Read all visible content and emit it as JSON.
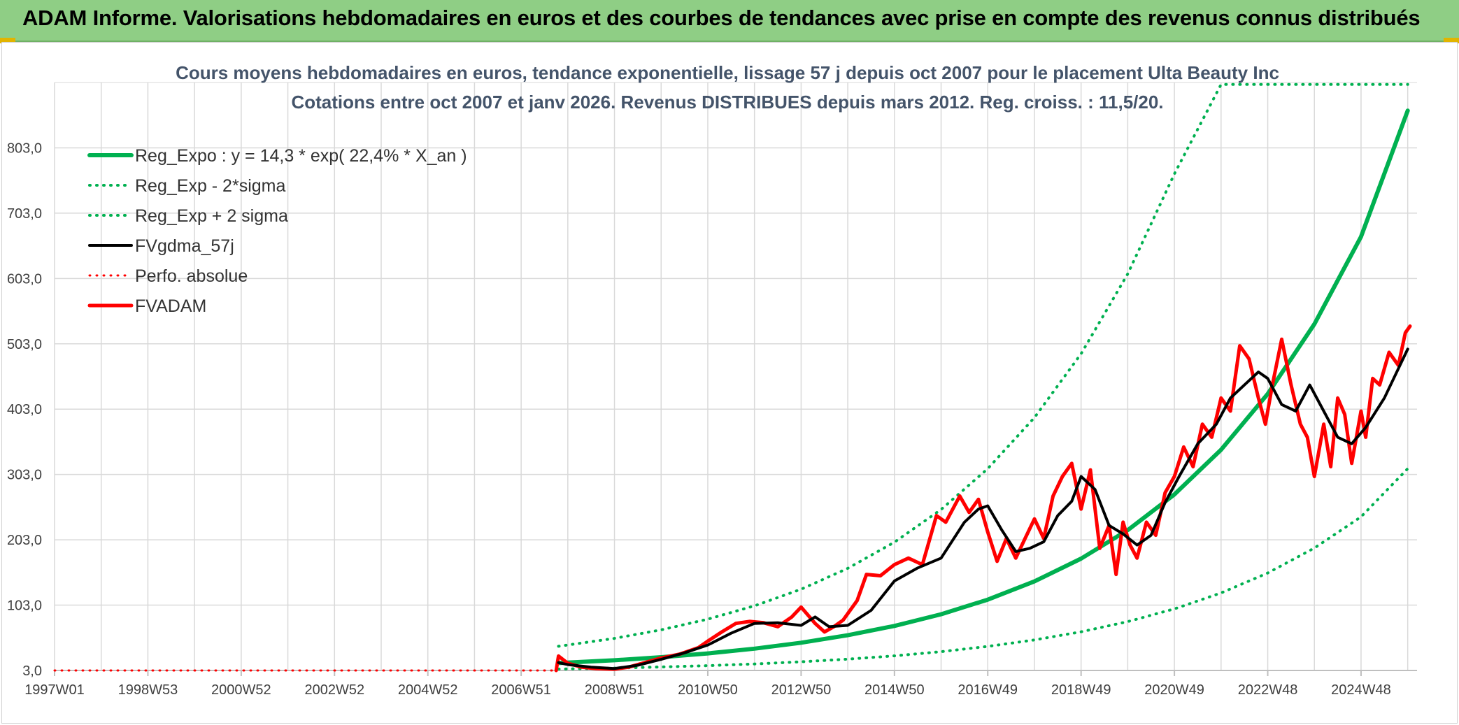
{
  "header": {
    "title": "ADAM Informe. Valorisations hebdomadaires en euros et des courbes de tendances avec prise en compte des revenus connus distribués"
  },
  "colors": {
    "banner": "#8fce85",
    "green": "#00b050",
    "black": "#000000",
    "red": "#ff0000",
    "grid": "#d9d9d9",
    "title": "#44546a"
  },
  "chart_data": {
    "type": "line",
    "title_line1": "Cours moyens hebdomadaires en euros, tendance exponentielle, lissage 57 j depuis oct 2007 pour le placement Ulta Beauty Inc",
    "title_line2": "Cotations entre oct 2007 et janv 2026. Revenus DISTRIBUES depuis mars 2012. Reg. croiss. : 11,5/20.",
    "xlabel": "",
    "ylabel": "",
    "ylim": [
      3,
      903
    ],
    "xlim": [
      1997.0,
      2026.2
    ],
    "grid": true,
    "legend_position": "top-left",
    "y_ticks": [
      "3,0",
      "103,0",
      "203,0",
      "303,0",
      "403,0",
      "503,0",
      "603,0",
      "703,0",
      "803,0"
    ],
    "y_tick_values": [
      3,
      103,
      203,
      303,
      403,
      503,
      603,
      703,
      803
    ],
    "x_ticks": [
      "1997W01",
      "1998W53",
      "2000W52",
      "2002W52",
      "2004W52",
      "2006W51",
      "2008W51",
      "2010W50",
      "2012W50",
      "2014W50",
      "2016W49",
      "2018W49",
      "2020W49",
      "2022W48",
      "2024W48"
    ],
    "x_tick_values": [
      1997.0,
      1999.0,
      2001.0,
      2003.0,
      2005.0,
      2007.0,
      2009.0,
      2011.0,
      2013.0,
      2015.0,
      2017.0,
      2019.0,
      2021.0,
      2023.0,
      2025.0
    ],
    "legend": [
      {
        "label": "Reg_Expo : y = 14,3 * exp( 22,4% *  X_an )",
        "color": "#00b050",
        "style": "solid",
        "width": 6
      },
      {
        "label": "Reg_Exp - 2*sigma",
        "color": "#00b050",
        "style": "dotted",
        "width": 4
      },
      {
        "label": "Reg_Exp + 2 sigma",
        "color": "#00b050",
        "style": "dotted",
        "width": 4
      },
      {
        "label": "FVgdma_57j",
        "color": "#000000",
        "style": "solid",
        "width": 4
      },
      {
        "label": "Perfo. absolue",
        "color": "#ff0000",
        "style": "dotted",
        "width": 3
      },
      {
        "label": "FVADAM",
        "color": "#ff0000",
        "style": "solid",
        "width": 5
      }
    ],
    "series": [
      {
        "name": "Reg_Expo : y = 14,3 * exp( 22,4% *  X_an )",
        "x": [
          2007.8,
          2009.0,
          2010.0,
          2011.0,
          2012.0,
          2013.0,
          2014.0,
          2015.0,
          2016.0,
          2017.0,
          2018.0,
          2019.0,
          2020.0,
          2021.0,
          2022.0,
          2023.0,
          2024.0,
          2025.0,
          2026.0
        ],
        "values": [
          14.3,
          18.6,
          23.3,
          29.1,
          36.4,
          45.5,
          56.9,
          71.2,
          89.0,
          111.4,
          139.3,
          174.2,
          217.9,
          272.5,
          340.9,
          426.3,
          533.2,
          666.9,
          860.0
        ]
      },
      {
        "name": "Reg_Exp - 2*sigma",
        "x": [
          2007.8,
          2009.0,
          2010.0,
          2011.0,
          2012.0,
          2013.0,
          2014.0,
          2015.0,
          2016.0,
          2017.0,
          2018.0,
          2019.0,
          2020.0,
          2021.0,
          2022.0,
          2023.0,
          2024.0,
          2025.0,
          2026.0
        ],
        "values": [
          5.1,
          6.6,
          8.3,
          10.4,
          13.0,
          16.3,
          20.3,
          25.4,
          31.8,
          39.8,
          49.8,
          62.2,
          77.8,
          97.3,
          121.7,
          152.2,
          190.4,
          238.1,
          312.0
        ]
      },
      {
        "name": "Reg_Exp + 2 sigma",
        "x": [
          2007.8,
          2009.0,
          2010.0,
          2011.0,
          2012.0,
          2013.0,
          2014.0,
          2015.0,
          2016.0,
          2017.0,
          2018.0,
          2019.0,
          2020.0,
          2021.0,
          2022.0,
          2023.0,
          2024.0,
          2025.0,
          2026.0
        ],
        "values": [
          40.0,
          52.1,
          65.2,
          81.5,
          101.9,
          127.4,
          159.4,
          199.4,
          249.3,
          311.9,
          390.1,
          487.8,
          610.1,
          763.1,
          900.0,
          900.0,
          900.0,
          900.0,
          900.0
        ]
      },
      {
        "name": "FVgdma_57j",
        "x": [
          2007.8,
          2008.0,
          2008.5,
          2009.0,
          2009.5,
          2010.0,
          2010.5,
          2011.0,
          2011.5,
          2012.0,
          2012.5,
          2013.0,
          2013.3,
          2013.6,
          2014.0,
          2014.5,
          2015.0,
          2015.5,
          2016.0,
          2016.5,
          2016.8,
          2017.0,
          2017.3,
          2017.6,
          2017.9,
          2018.2,
          2018.5,
          2018.8,
          2019.0,
          2019.3,
          2019.6,
          2019.9,
          2020.2,
          2020.5,
          2020.8,
          2021.1,
          2021.5,
          2021.9,
          2022.2,
          2022.5,
          2022.8,
          2023.0,
          2023.3,
          2023.6,
          2023.9,
          2024.2,
          2024.5,
          2024.8,
          2025.1,
          2025.5,
          2025.8,
          2026.0
        ],
        "values": [
          15,
          12,
          8,
          6,
          11,
          20,
          30,
          42,
          60,
          75,
          76,
          72,
          85,
          70,
          72,
          95,
          140,
          160,
          175,
          230,
          250,
          255,
          218,
          185,
          190,
          200,
          240,
          262,
          300,
          280,
          225,
          212,
          195,
          210,
          260,
          300,
          350,
          380,
          420,
          440,
          460,
          450,
          410,
          400,
          440,
          400,
          360,
          350,
          375,
          420,
          465,
          495
        ]
      },
      {
        "name": "FVADAM",
        "x": [
          2007.75,
          2007.8,
          2008.0,
          2008.3,
          2008.6,
          2009.0,
          2009.3,
          2009.6,
          2010.0,
          2010.4,
          2010.8,
          2011.0,
          2011.3,
          2011.6,
          2011.9,
          2012.2,
          2012.5,
          2012.8,
          2013.0,
          2013.3,
          2013.5,
          2013.7,
          2013.9,
          2014.2,
          2014.4,
          2014.7,
          2015.0,
          2015.3,
          2015.6,
          2015.9,
          2016.1,
          2016.4,
          2016.6,
          2016.8,
          2017.0,
          2017.2,
          2017.4,
          2017.6,
          2017.8,
          2018.0,
          2018.2,
          2018.4,
          2018.6,
          2018.8,
          2019.0,
          2019.2,
          2019.4,
          2019.6,
          2019.75,
          2019.9,
          2020.05,
          2020.2,
          2020.4,
          2020.6,
          2020.8,
          2021.0,
          2021.2,
          2021.4,
          2021.6,
          2021.8,
          2022.0,
          2022.2,
          2022.4,
          2022.6,
          2022.8,
          2022.95,
          2023.1,
          2023.3,
          2023.5,
          2023.7,
          2023.85,
          2024.0,
          2024.2,
          2024.35,
          2024.5,
          2024.65,
          2024.8,
          2025.0,
          2025.1,
          2025.25,
          2025.4,
          2025.6,
          2025.8,
          2025.95,
          2026.05
        ],
        "values": [
          3,
          25,
          14,
          8,
          6,
          5,
          8,
          14,
          22,
          28,
          38,
          48,
          62,
          75,
          78,
          76,
          70,
          85,
          100,
          75,
          62,
          70,
          80,
          110,
          150,
          148,
          165,
          175,
          165,
          240,
          230,
          270,
          245,
          265,
          215,
          170,
          205,
          175,
          205,
          235,
          205,
          270,
          300,
          320,
          250,
          310,
          190,
          225,
          150,
          230,
          195,
          175,
          230,
          210,
          275,
          300,
          345,
          315,
          380,
          360,
          420,
          400,
          500,
          480,
          420,
          380,
          440,
          510,
          440,
          380,
          360,
          300,
          380,
          315,
          420,
          395,
          320,
          400,
          360,
          450,
          440,
          490,
          470,
          520,
          530
        ]
      },
      {
        "name": "Perfo. absolue",
        "x": [
          1997.0,
          2007.75
        ],
        "values": [
          3,
          3
        ]
      }
    ]
  }
}
